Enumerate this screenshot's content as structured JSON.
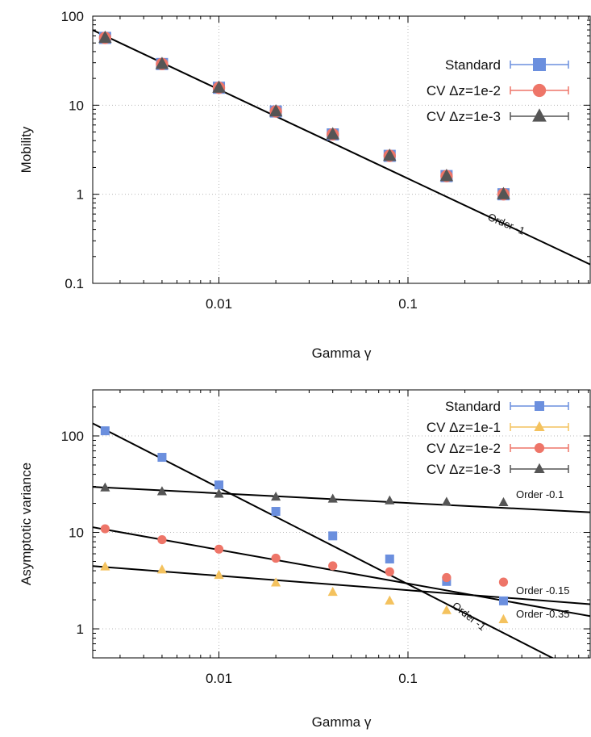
{
  "chart_data": [
    {
      "type": "scatter",
      "xlabel": "Gamma γ",
      "ylabel": "Mobility",
      "log_x": true,
      "log_y": true,
      "xlim": [
        0.00215,
        0.92
      ],
      "ylim": [
        0.1,
        100
      ],
      "x_ticks": [
        {
          "v": 0.01,
          "label": "0.01"
        },
        {
          "v": 0.1,
          "label": "0.1"
        }
      ],
      "y_ticks": [
        {
          "v": 0.1,
          "label": "0.1"
        },
        {
          "v": 1,
          "label": "1"
        },
        {
          "v": 10,
          "label": "10"
        },
        {
          "v": 100,
          "label": "100"
        }
      ],
      "grid": true,
      "legend_position": "upper-right",
      "x": [
        0.0025,
        0.005,
        0.01,
        0.02,
        0.04,
        0.08,
        0.16,
        0.32
      ],
      "series": [
        {
          "name": "Standard",
          "marker": "square",
          "color": "#6b8fde",
          "values": [
            57,
            29,
            15.7,
            8.5,
            4.7,
            2.7,
            1.6,
            1.0
          ]
        },
        {
          "name": "CV Δz=1e-2",
          "marker": "circle",
          "color": "#ee7568",
          "values": [
            57,
            29,
            15.7,
            8.5,
            4.7,
            2.7,
            1.6,
            1.0
          ]
        },
        {
          "name": "CV Δz=1e-3",
          "marker": "triangle",
          "color": "#555555",
          "values": [
            57,
            29,
            15.7,
            8.5,
            4.7,
            2.7,
            1.6,
            1.0
          ]
        }
      ],
      "reference_lines": [
        {
          "label": "Order -1",
          "slope": -1,
          "anchor": [
            0.01,
            15.0
          ]
        }
      ]
    },
    {
      "type": "scatter",
      "xlabel": "Gamma γ",
      "ylabel": "Asymptotic variance",
      "log_x": true,
      "log_y": true,
      "xlim": [
        0.00215,
        0.92
      ],
      "ylim": [
        0.5,
        300
      ],
      "x_ticks": [
        {
          "v": 0.01,
          "label": "0.01"
        },
        {
          "v": 0.1,
          "label": "0.1"
        }
      ],
      "y_ticks": [
        {
          "v": 1,
          "label": "1"
        },
        {
          "v": 10,
          "label": "10"
        },
        {
          "v": 100,
          "label": "100"
        }
      ],
      "grid": true,
      "legend_position": "upper-right",
      "x": [
        0.0025,
        0.005,
        0.01,
        0.02,
        0.04,
        0.08,
        0.16,
        0.32
      ],
      "series": [
        {
          "name": "Standard",
          "marker": "square",
          "color": "#6b8fde",
          "values": [
            113,
            60,
            31,
            16.5,
            9.2,
            5.3,
            3.1,
            1.95
          ]
        },
        {
          "name": "CV Δz=1e-1",
          "marker": "triangle",
          "color": "#f4c25e",
          "values": [
            4.4,
            4.1,
            3.6,
            3.0,
            2.4,
            1.95,
            1.55,
            1.25
          ]
        },
        {
          "name": "CV Δz=1e-2",
          "marker": "circle",
          "color": "#ee7568",
          "values": [
            10.9,
            8.4,
            6.7,
            5.4,
            4.5,
            3.9,
            3.4,
            3.05
          ]
        },
        {
          "name": "CV Δz=1e-3",
          "marker": "triangle",
          "color": "#555555",
          "values": [
            29,
            26.5,
            25,
            23.3,
            22.2,
            21.3,
            20.6,
            20.4
          ]
        }
      ],
      "reference_lines": [
        {
          "label": "Order -0.1",
          "slope": -0.1,
          "anchor": [
            0.01,
            25.4
          ]
        },
        {
          "label": "Order -0.15",
          "slope": -0.15,
          "anchor": [
            0.01,
            3.55
          ]
        },
        {
          "label": "Order -0.35",
          "slope": -0.35,
          "anchor": [
            0.01,
            6.6
          ]
        },
        {
          "label": "Order -1",
          "slope": -1,
          "anchor": [
            0.01,
            29
          ]
        }
      ]
    }
  ]
}
